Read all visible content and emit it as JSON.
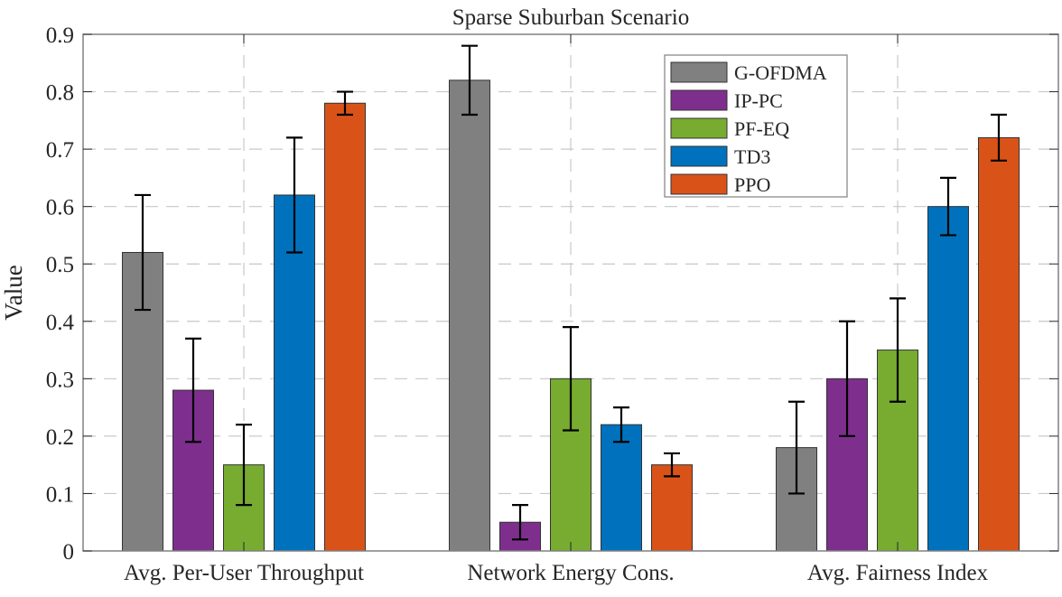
{
  "chart_data": {
    "type": "bar",
    "title": "Sparse Suburban Scenario",
    "xlabel": "",
    "ylabel": "Value",
    "ylim": [
      0,
      0.9
    ],
    "yticks": [
      "0",
      "0.1",
      "0.2",
      "0.3",
      "0.4",
      "0.5",
      "0.6",
      "0.7",
      "0.8",
      "0.9"
    ],
    "grid": true,
    "legend_position": "top-right",
    "categories": [
      "Avg. Per-User Throughput",
      "Network Energy Cons.",
      "Avg. Fairness Index"
    ],
    "series": [
      {
        "name": "G-OFDMA",
        "color": "#808080",
        "values": [
          0.52,
          0.82,
          0.18
        ],
        "error_low": [
          0.42,
          0.76,
          0.1
        ],
        "error_high": [
          0.62,
          0.88,
          0.26
        ]
      },
      {
        "name": "IP-PC",
        "color": "#7E2F8E",
        "values": [
          0.28,
          0.05,
          0.3
        ],
        "error_low": [
          0.19,
          0.02,
          0.2
        ],
        "error_high": [
          0.37,
          0.08,
          0.4
        ]
      },
      {
        "name": "PF-EQ",
        "color": "#77AC30",
        "values": [
          0.15,
          0.3,
          0.35
        ],
        "error_low": [
          0.08,
          0.21,
          0.26
        ],
        "error_high": [
          0.22,
          0.39,
          0.44
        ]
      },
      {
        "name": "TD3",
        "color": "#0072BD",
        "values": [
          0.62,
          0.22,
          0.6
        ],
        "error_low": [
          0.52,
          0.19,
          0.55
        ],
        "error_high": [
          0.72,
          0.25,
          0.65
        ]
      },
      {
        "name": "PPO",
        "color": "#D95319",
        "values": [
          0.78,
          0.15,
          0.72
        ],
        "error_low": [
          0.76,
          0.13,
          0.68
        ],
        "error_high": [
          0.8,
          0.17,
          0.76
        ]
      }
    ]
  }
}
